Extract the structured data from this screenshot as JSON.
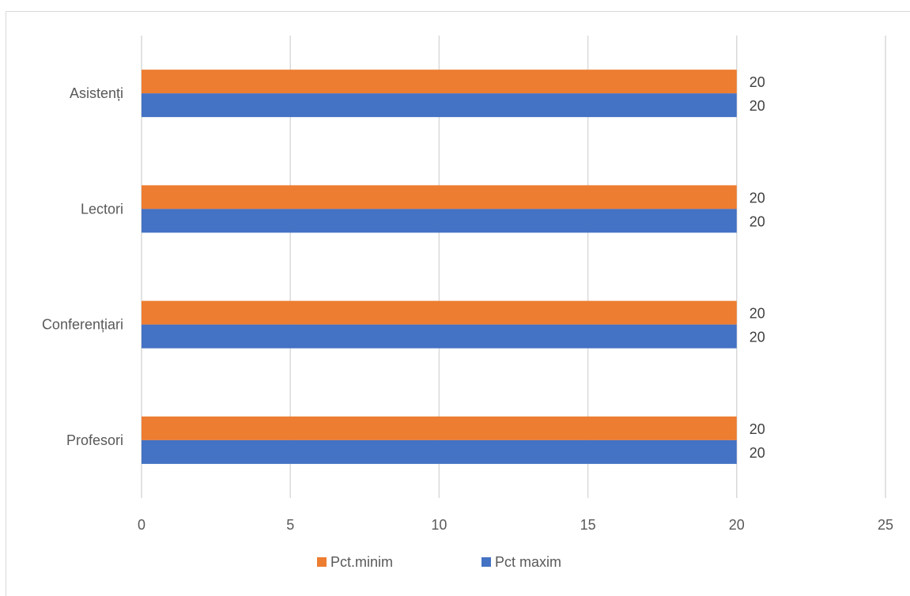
{
  "chart_data": {
    "type": "bar",
    "orientation": "horizontal",
    "categories": [
      "Asistenți",
      "Lectori",
      "Conferențiari",
      "Profesori"
    ],
    "series": [
      {
        "name": "Pct.minim",
        "color": "#ED7D31",
        "values": [
          20,
          20,
          20,
          20
        ]
      },
      {
        "name": "Pct maxim",
        "color": "#4472C4",
        "values": [
          20,
          20,
          20,
          20
        ]
      }
    ],
    "xlim": [
      0,
      25
    ],
    "xticks": [
      "0",
      "5",
      "10",
      "15",
      "20",
      "25"
    ],
    "grid": true,
    "legend_position": "bottom",
    "data_labels": true
  }
}
